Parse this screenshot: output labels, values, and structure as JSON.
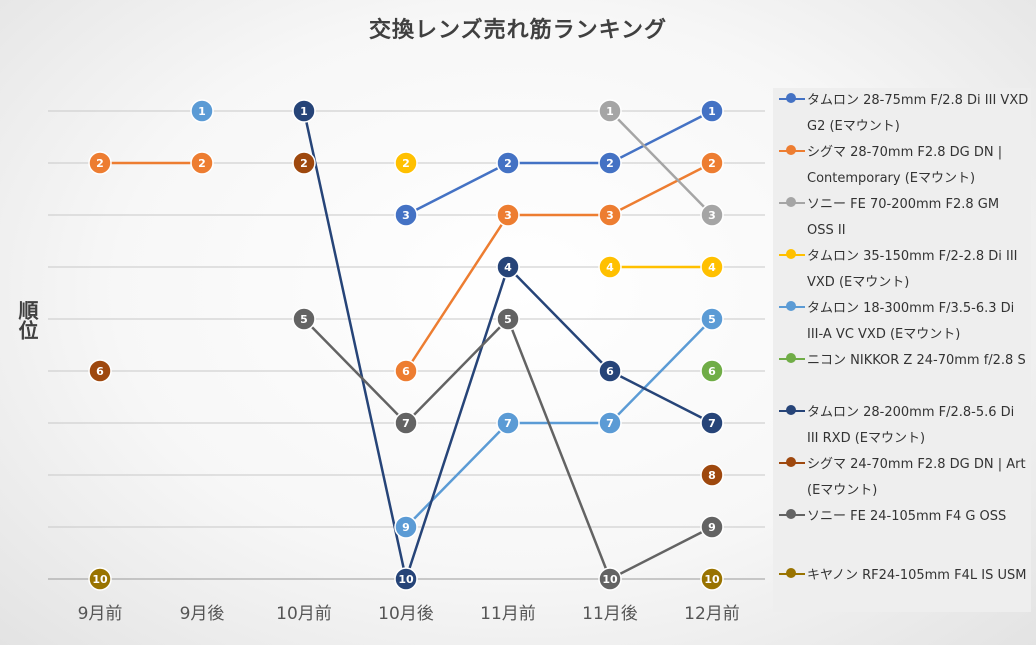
{
  "chart_data": {
    "type": "line",
    "title": "交換レンズ売れ筋ランキング",
    "ylabel": "順位",
    "xlabel": "",
    "categories": [
      "9月前",
      "9月後",
      "10月前",
      "10月後",
      "11月前",
      "11月後",
      "12月前"
    ],
    "ylim": [
      1,
      10
    ],
    "y_inverted": true,
    "y_tick_labels_shown": false,
    "grid": true,
    "legend_position": "right",
    "series": [
      {
        "name": "タムロン 28-75mm F/2.8 Di III VXD G2 (Eマウント)",
        "color": "#4472c4",
        "values": [
          null,
          null,
          null,
          3,
          2,
          2,
          1
        ]
      },
      {
        "name": "シグマ 28-70mm F2.8 DG DN | Contemporary (Eマウント)",
        "color": "#ed7d31",
        "values": [
          2,
          2,
          null,
          6,
          3,
          3,
          2
        ]
      },
      {
        "name": "ソニー FE 70-200mm F2.8 GM OSS II",
        "color": "#a5a5a5",
        "values": [
          null,
          null,
          null,
          null,
          null,
          1,
          3
        ]
      },
      {
        "name": "タムロン 35-150mm F/2-2.8 Di III VXD (Eマウント)",
        "color": "#ffc000",
        "values": [
          null,
          null,
          null,
          2,
          null,
          4,
          4
        ]
      },
      {
        "name": "タムロン 18-300mm F/3.5-6.3 Di III-A VC VXD (Eマウント)",
        "color": "#5b9bd5",
        "values": [
          null,
          1,
          null,
          9,
          7,
          7,
          5
        ]
      },
      {
        "name": "ニコン NIKKOR Z 24-70mm f/2.8 S",
        "color": "#70ad47",
        "values": [
          null,
          null,
          null,
          null,
          null,
          null,
          6
        ]
      },
      {
        "name": "タムロン 28-200mm F/2.8-5.6 Di III RXD (Eマウント)",
        "color": "#264478",
        "values": [
          null,
          null,
          1,
          10,
          4,
          6,
          7
        ]
      },
      {
        "name": "シグマ 24-70mm F2.8 DG DN | Art (Eマウント)",
        "color": "#9e480e",
        "values": [
          6,
          null,
          2,
          null,
          null,
          null,
          8
        ]
      },
      {
        "name": "ソニー FE 24-105mm F4 G OSS",
        "color": "#636363",
        "values": [
          null,
          null,
          5,
          7,
          5,
          10,
          9
        ]
      },
      {
        "name": "キヤノン RF24-105mm F4L IS USM",
        "color": "#997300",
        "values": [
          10,
          null,
          null,
          null,
          null,
          null,
          10
        ]
      }
    ]
  }
}
